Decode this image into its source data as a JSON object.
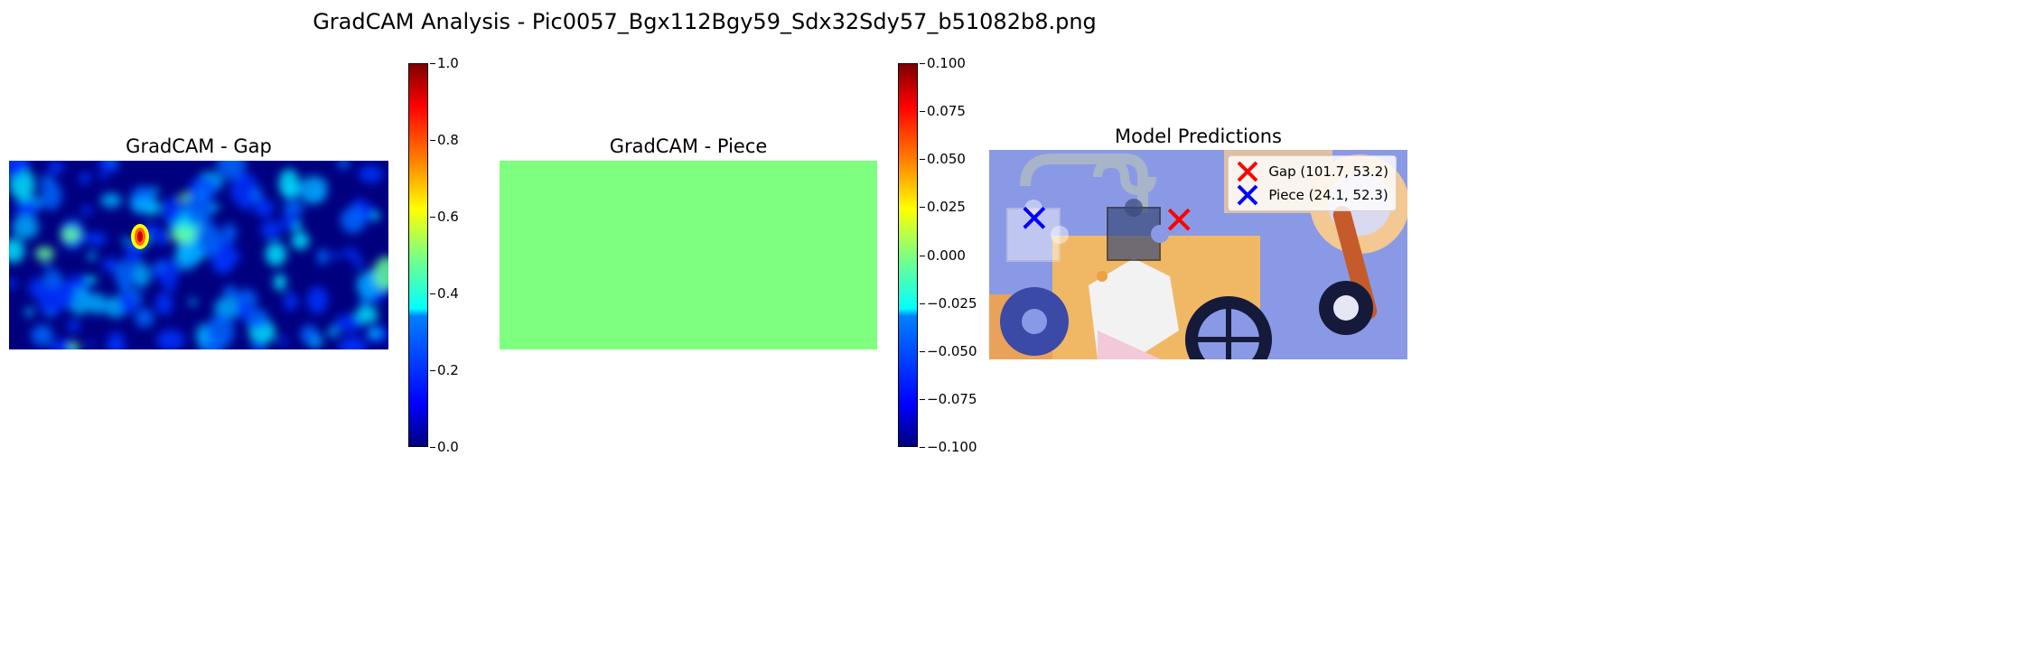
{
  "figure": {
    "suptitle": "GradCAM Analysis - Pic0057_Bgx112Bgy59_Sdx32Sdy57_b51082b8.png"
  },
  "chart_data": [
    {
      "type": "heatmap",
      "title": "GradCAM - Gap",
      "colormap": "jet",
      "colorbar": {
        "range": [
          0.0,
          1.0
        ],
        "ticks": [
          "0.0",
          "0.2",
          "0.4",
          "0.6",
          "0.8",
          "1.0"
        ]
      },
      "peak": {
        "x": 101.7,
        "y": 53.2,
        "value": 1.0
      },
      "axes": "off"
    },
    {
      "type": "heatmap",
      "title": "GradCAM - Piece",
      "colormap": "jet",
      "uniform_value": 0.0,
      "colorbar": {
        "range": [
          -0.1,
          0.1
        ],
        "ticks": [
          "−0.100",
          "−0.075",
          "−0.050",
          "−0.025",
          "0.000",
          "0.025",
          "0.050",
          "0.075",
          "0.100"
        ]
      },
      "axes": "off"
    },
    {
      "type": "scatter",
      "title": "Model Predictions",
      "legend_position": "top-right",
      "series": [
        {
          "name": "Gap (101.7, 53.2)",
          "x": 101.7,
          "y": 53.2,
          "marker": "x",
          "color": "#ff0000"
        },
        {
          "name": "Piece (24.1, 52.3)",
          "x": 24.1,
          "y": 52.3,
          "marker": "x",
          "color": "#0000ff"
        }
      ],
      "axes": "off"
    }
  ]
}
